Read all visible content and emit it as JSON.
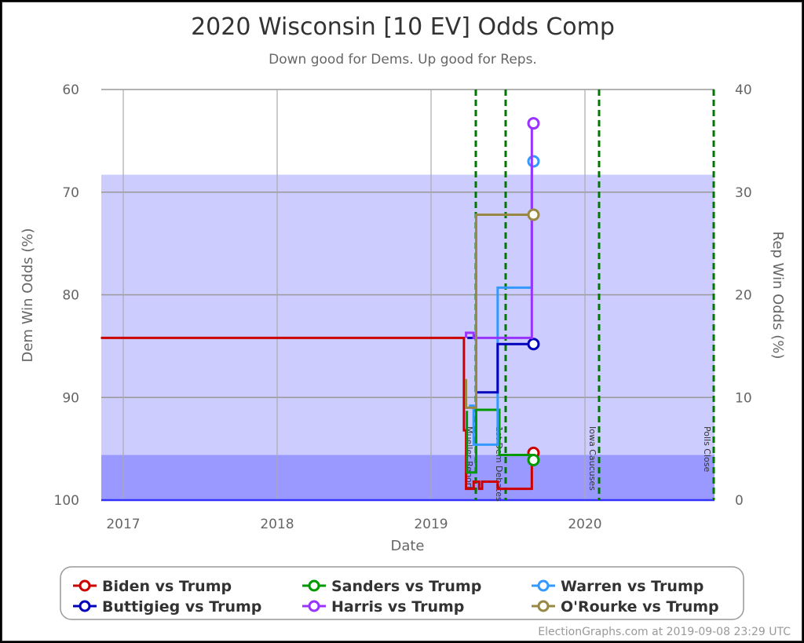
{
  "header": {
    "title": "2020 Wisconsin [10 EV] Odds Comp",
    "subtitle": "Down good for Dems. Up good for Reps."
  },
  "axes": {
    "left_label": "Dem Win Odds (%)",
    "right_label": "Rep Win Odds (%)",
    "x_label": "Date",
    "left_ticks": [
      "60",
      "70",
      "80",
      "90",
      "100"
    ],
    "right_ticks": [
      "40",
      "30",
      "20",
      "10",
      "0"
    ],
    "x_ticks": [
      "2017",
      "2018",
      "2019",
      "2020"
    ]
  },
  "events": [
    {
      "label": "Mueller Report",
      "date": "2019-04-18"
    },
    {
      "label": "1st Dem Debates",
      "date": "2019-06-26"
    },
    {
      "label": "Iowa Caucuses",
      "date": "2020-02-03"
    },
    {
      "label": "Polls Close",
      "date": "2020-11-03"
    }
  ],
  "legend": {
    "items": [
      {
        "label": "Biden vs Trump",
        "color": "#cc0000"
      },
      {
        "label": "Sanders vs Trump",
        "color": "#009900"
      },
      {
        "label": "Warren vs Trump",
        "color": "#3399ff"
      },
      {
        "label": "Buttigieg vs Trump",
        "color": "#0000bb"
      },
      {
        "label": "Harris vs Trump",
        "color": "#9933ff"
      },
      {
        "label": "O'Rourke vs Trump",
        "color": "#998844"
      }
    ]
  },
  "credit": "ElectionGraphs.com at 2019-09-08 23:29 UTC",
  "colors": {
    "band_light": "#ccccff",
    "band_dark": "#9999ff",
    "baseline": "#3333ff",
    "event_line": "#007700",
    "grid": "#999999"
  },
  "chart_data": {
    "type": "line",
    "title": "2020 Wisconsin [10 EV] Odds Comp",
    "subtitle": "Down good for Dems. Up good for Reps.",
    "xlabel": "Date",
    "ylabel": "Dem Win Odds (%)",
    "ylabel_right": "Rep Win Odds (%)",
    "ylim": [
      60,
      100
    ],
    "ylim_right": [
      40,
      0
    ],
    "y_inverted": true,
    "xlim": [
      "2016-11-09",
      "2020-11-04"
    ],
    "grid": true,
    "legend_position": "bottom",
    "bands": [
      {
        "from": 68.3,
        "to": 95.6,
        "color": "#ccccff"
      },
      {
        "from": 95.6,
        "to": 100,
        "color": "#9999ff"
      }
    ],
    "series": [
      {
        "name": "Biden vs Trump",
        "color": "#cc0000",
        "points": [
          [
            "2016-11-09",
            84.2
          ],
          [
            "2019-03-20",
            84.2
          ],
          [
            "2019-03-20",
            93.2
          ],
          [
            "2019-03-25",
            93.2
          ],
          [
            "2019-03-25",
            98.9
          ],
          [
            "2019-04-12",
            98.9
          ],
          [
            "2019-04-12",
            98.2
          ],
          [
            "2019-04-25",
            98.2
          ],
          [
            "2019-04-25",
            98.9
          ],
          [
            "2019-05-02",
            98.9
          ],
          [
            "2019-05-02",
            98.2
          ],
          [
            "2019-06-08",
            98.2
          ],
          [
            "2019-06-08",
            98.9
          ],
          [
            "2019-08-28",
            98.9
          ],
          [
            "2019-08-28",
            95.4
          ],
          [
            "2019-09-01",
            95.4
          ]
        ],
        "final": 95.4
      },
      {
        "name": "Sanders vs Trump",
        "color": "#009900",
        "points": [
          [
            "2019-03-27",
            91.3
          ],
          [
            "2019-03-27",
            97.3
          ],
          [
            "2019-04-18",
            97.3
          ],
          [
            "2019-04-18",
            91.2
          ],
          [
            "2019-06-12",
            91.2
          ],
          [
            "2019-06-12",
            95.6
          ],
          [
            "2019-09-01",
            95.6
          ],
          [
            "2019-09-01",
            96.1
          ]
        ],
        "final": 96.1
      },
      {
        "name": "Warren vs Trump",
        "color": "#3399ff",
        "points": [
          [
            "2019-04-01",
            90.8
          ],
          [
            "2019-04-12",
            90.8
          ],
          [
            "2019-04-12",
            94.6
          ],
          [
            "2019-06-08",
            94.6
          ],
          [
            "2019-06-08",
            79.3
          ],
          [
            "2019-08-28",
            79.3
          ],
          [
            "2019-08-28",
            67.0
          ],
          [
            "2019-09-01",
            67.0
          ]
        ],
        "final": 67.0
      },
      {
        "name": "Buttigieg vs Trump",
        "color": "#0000bb",
        "points": [
          [
            "2019-03-28",
            84.2
          ],
          [
            "2019-04-18",
            84.2
          ],
          [
            "2019-04-18",
            89.5
          ],
          [
            "2019-06-08",
            89.5
          ],
          [
            "2019-06-08",
            84.8
          ],
          [
            "2019-09-01",
            84.8
          ]
        ],
        "final": 84.8
      },
      {
        "name": "Harris vs Trump",
        "color": "#9933ff",
        "points": [
          [
            "2019-03-25",
            84.2
          ],
          [
            "2019-03-25",
            83.7
          ],
          [
            "2019-04-12",
            83.7
          ],
          [
            "2019-04-12",
            84.2
          ],
          [
            "2019-08-28",
            84.2
          ],
          [
            "2019-08-28",
            63.3
          ],
          [
            "2019-09-01",
            63.3
          ]
        ],
        "final": 63.3
      },
      {
        "name": "O'Rourke vs Trump",
        "color": "#998844",
        "points": [
          [
            "2019-03-25",
            88.2
          ],
          [
            "2019-03-25",
            91.0
          ],
          [
            "2019-04-18",
            91.0
          ],
          [
            "2019-04-18",
            72.2
          ],
          [
            "2019-09-01",
            72.2
          ]
        ],
        "final": 72.2
      }
    ],
    "annotations": [
      "Mueller Report",
      "1st Dem Debates",
      "Iowa Caucuses",
      "Polls Close"
    ]
  }
}
